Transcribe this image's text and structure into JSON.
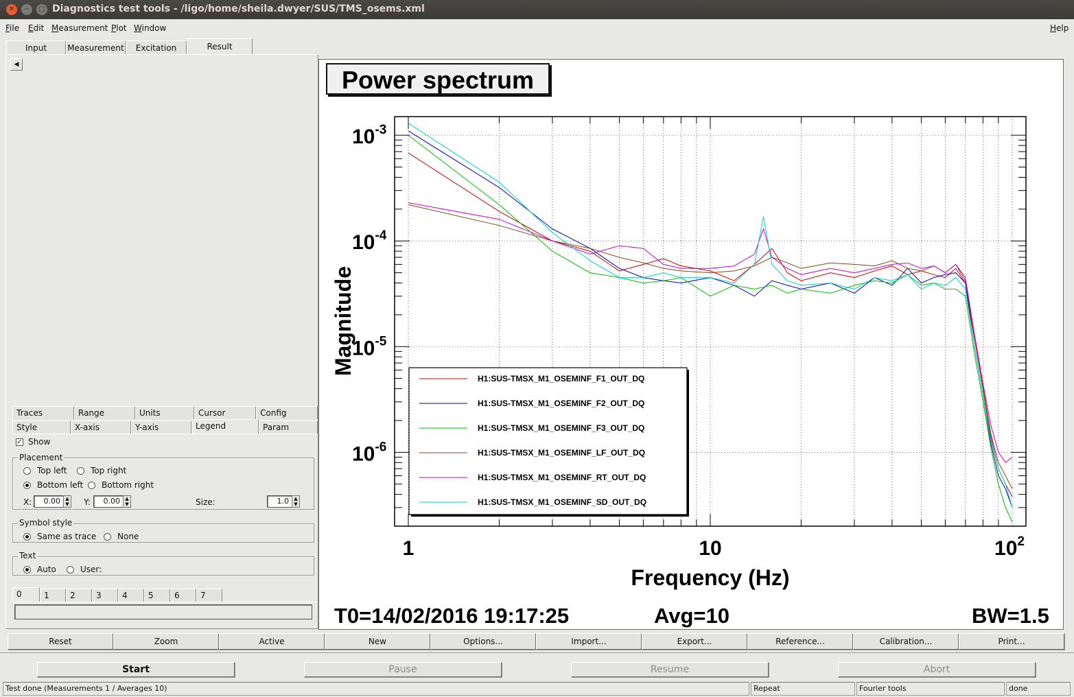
{
  "window": {
    "title": "Diagnostics test tools - /ligo/home/sheila.dwyer/SUS/TMS_osems.xml"
  },
  "menu": {
    "items": [
      "File",
      "Edit",
      "Measurement",
      "Plot",
      "Window"
    ],
    "help": "Help"
  },
  "top_tabs": [
    "Input",
    "Measurement",
    "Excitation",
    "Result"
  ],
  "left_panel": {
    "tabs_row1": [
      "Traces",
      "Range",
      "Units",
      "Cursor",
      "Config"
    ],
    "tabs_row2": [
      "Style",
      "X-axis",
      "Y-axis",
      "Legend",
      "Param"
    ],
    "show_label": "Show",
    "placement": {
      "label": "Placement",
      "top_left": "Top left",
      "top_right": "Top right",
      "bottom_left": "Bottom left",
      "bottom_right": "Bottom right",
      "x_label": "X:",
      "x_value": "0.00",
      "y_label": "Y:",
      "y_value": "0.00",
      "size_label": "Size:",
      "size_value": "1.0"
    },
    "symbol_style": {
      "label": "Symbol style",
      "same": "Same as trace",
      "none": "None"
    },
    "text": {
      "label": "Text",
      "auto": "Auto",
      "user": "User:"
    },
    "trace_tabs": [
      "0",
      "1",
      "2",
      "3",
      "4",
      "5",
      "6",
      "7"
    ]
  },
  "plot": {
    "title": "Power spectrum",
    "footer": {
      "t0": "T0=14/02/2016 19:17:25",
      "avg": "Avg=10",
      "bw": "BW=1.5"
    }
  },
  "chart_data": {
    "type": "line",
    "title": "Power spectrum",
    "xlabel": "Frequency (Hz)",
    "ylabel": "Magnitude",
    "x_scale": "log",
    "y_scale": "log",
    "xlim": [
      1,
      100
    ],
    "ylim": [
      2e-07,
      0.0015
    ],
    "x_tick_labels": [
      {
        "value": 1,
        "base": "1",
        "exp": ""
      },
      {
        "value": 10,
        "base": "10",
        "exp": ""
      },
      {
        "value": 100,
        "base": "10",
        "exp": "2"
      }
    ],
    "y_tick_labels": [
      {
        "value": 0.001,
        "base": "10",
        "exp": "-3"
      },
      {
        "value": 0.0001,
        "base": "10",
        "exp": "-4"
      },
      {
        "value": 1e-05,
        "base": "10",
        "exp": "-5"
      },
      {
        "value": 1e-06,
        "base": "10",
        "exp": "-6"
      }
    ],
    "grid": true,
    "legend_position": "bottom-left",
    "series": [
      {
        "name": "H1:SUS-TMSX_M1_OSEMINF_F1_OUT_DQ",
        "color": "#d40000",
        "x": [
          1,
          2,
          3,
          4,
          5,
          6,
          7,
          8,
          10,
          12,
          14,
          16,
          18,
          20,
          25,
          30,
          35,
          40,
          45,
          50,
          55,
          60,
          65,
          70,
          75,
          80,
          85,
          90,
          95,
          100
        ],
        "y": [
          0.00068,
          0.00019,
          0.0001,
          8e-05,
          5.2e-05,
          6e-05,
          6.8e-05,
          5.8e-05,
          5.2e-05,
          4.2e-05,
          6e-05,
          8.5e-05,
          5e-05,
          4.2e-05,
          5e-05,
          4.5e-05,
          5.2e-05,
          5.8e-05,
          4.8e-05,
          5.2e-05,
          4.8e-05,
          4.5e-05,
          5.5e-05,
          4e-05,
          1.2e-05,
          4e-06,
          1.4e-06,
          7e-07,
          5e-07,
          3.8e-07
        ]
      },
      {
        "name": "H1:SUS-TMSX_M1_OSEMINF_F2_OUT_DQ",
        "color": "#0000c0",
        "x": [
          1,
          2,
          3,
          4,
          5,
          6,
          7,
          8,
          10,
          12,
          14,
          16,
          18,
          20,
          25,
          30,
          35,
          40,
          45,
          50,
          55,
          60,
          65,
          70,
          75,
          80,
          85,
          90,
          95,
          100
        ],
        "y": [
          0.0011,
          0.00032,
          0.00013,
          8.5e-05,
          5.5e-05,
          4.5e-05,
          4.2e-05,
          4e-05,
          4.5e-05,
          3.8e-05,
          3e-05,
          4.2e-05,
          3.8e-05,
          3.5e-05,
          4e-05,
          3.2e-05,
          4.5e-05,
          3.8e-05,
          5.5e-05,
          4e-05,
          4.5e-05,
          4.8e-05,
          5e-05,
          4e-05,
          1e-05,
          3.5e-06,
          1.2e-06,
          6e-07,
          4.5e-07,
          3e-07
        ]
      },
      {
        "name": "H1:SUS-TMSX_M1_OSEMINF_F3_OUT_DQ",
        "color": "#00c000",
        "x": [
          1,
          2,
          3,
          4,
          5,
          6,
          7,
          8,
          10,
          12,
          14,
          16,
          18,
          20,
          25,
          30,
          35,
          40,
          45,
          50,
          55,
          60,
          65,
          70,
          75,
          80,
          85,
          90,
          95,
          100
        ],
        "y": [
          0.001,
          0.00022,
          8e-05,
          5e-05,
          4.5e-05,
          4e-05,
          4.2e-05,
          4.5e-05,
          3e-05,
          3.8e-05,
          3.5e-05,
          3.8e-05,
          3.2e-05,
          3.5e-05,
          3.2e-05,
          3.8e-05,
          4.2e-05,
          4e-05,
          4.8e-05,
          3.8e-05,
          4e-05,
          3.5e-05,
          3.5e-05,
          3e-05,
          8.5e-06,
          3e-06,
          1.1e-06,
          5e-07,
          3e-07,
          2.2e-07
        ]
      },
      {
        "name": "H1:SUS-TMSX_M1_OSEMINF_LF_OUT_DQ",
        "color": "#8b4513",
        "x": [
          1,
          2,
          3,
          4,
          5,
          6,
          7,
          8,
          10,
          12,
          14,
          16,
          18,
          20,
          25,
          30,
          35,
          40,
          45,
          50,
          55,
          60,
          65,
          70,
          75,
          80,
          85,
          90,
          95,
          100
        ],
        "y": [
          0.00022,
          0.00014,
          0.0001,
          8.5e-05,
          7e-05,
          6.2e-05,
          5.5e-05,
          5.2e-05,
          5e-05,
          5.2e-05,
          5.8e-05,
          7e-05,
          6.2e-05,
          5.5e-05,
          6.2e-05,
          6e-05,
          5.8e-05,
          6.5e-05,
          5.5e-05,
          5.2e-05,
          5.8e-05,
          5e-05,
          6e-05,
          4.5e-05,
          1.3e-05,
          4.2e-06,
          1.5e-06,
          8e-07,
          6e-07,
          4.5e-07
        ]
      },
      {
        "name": "H1:SUS-TMSX_M1_OSEMINF_RT_OUT_DQ",
        "color": "#d000d0",
        "x": [
          1,
          2,
          3,
          4,
          5,
          6,
          7,
          8,
          10,
          12,
          14,
          15,
          16,
          18,
          20,
          25,
          30,
          35,
          40,
          45,
          50,
          55,
          60,
          65,
          70,
          75,
          80,
          85,
          90,
          95,
          100
        ],
        "y": [
          0.00023,
          0.00016,
          0.0001,
          7.5e-05,
          9e-05,
          8.5e-05,
          6e-05,
          5.5e-05,
          5.5e-05,
          5.8e-05,
          7.5e-05,
          0.00013,
          7e-05,
          5.5e-05,
          4.8e-05,
          5.5e-05,
          5e-05,
          5.5e-05,
          6e-05,
          6.2e-05,
          5.5e-05,
          5.8e-05,
          5e-05,
          6e-05,
          4.2e-05,
          1.3e-05,
          4.5e-06,
          1.8e-06,
          1e-06,
          8e-07,
          9e-07
        ]
      },
      {
        "name": "H1:SUS-TMSX_M1_OSEMINF_SD_OUT_DQ",
        "color": "#00d0d0",
        "x": [
          1,
          2,
          3,
          4,
          5,
          6,
          7,
          8,
          10,
          12,
          14,
          15,
          16,
          18,
          20,
          25,
          30,
          35,
          40,
          45,
          50,
          55,
          60,
          65,
          70,
          75,
          80,
          85,
          90,
          95,
          100
        ],
        "y": [
          0.0013,
          0.00036,
          0.00012,
          6.5e-05,
          4.5e-05,
          4.5e-05,
          5e-05,
          4.5e-05,
          4.5e-05,
          4e-05,
          6e-05,
          0.00017,
          6e-05,
          4.2e-05,
          3.8e-05,
          4e-05,
          3.5e-05,
          4.5e-05,
          4.2e-05,
          4.8e-05,
          3.5e-05,
          4e-05,
          3.8e-05,
          4.5e-05,
          3.5e-05,
          1e-05,
          3.5e-06,
          1.3e-06,
          7e-07,
          5e-07,
          3e-07
        ]
      }
    ]
  },
  "buttons": [
    "Reset",
    "Zoom",
    "Active",
    "New",
    "Options...",
    "Import...",
    "Export...",
    "Reference...",
    "Calibration...",
    "Print..."
  ],
  "controls": [
    "Start",
    "Pause",
    "Resume",
    "Abort"
  ],
  "status": {
    "message": "Test done (Measurements 1 / Averages 10)",
    "repeat": "Repeat",
    "tool": "Fourier tools",
    "state": "done"
  }
}
